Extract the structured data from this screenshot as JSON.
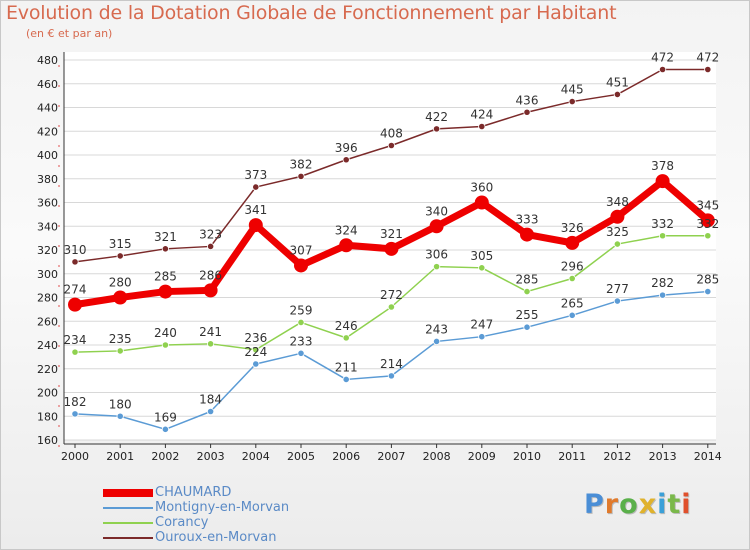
{
  "title": "Evolution de la Dotation Globale de Fonctionnement par Habitant",
  "subtitle": "(en € et par an)",
  "logo": {
    "text": "Proxiti",
    "letter_colors": [
      "#4a8ed6",
      "#e07a2c",
      "#5ab04a",
      "#e0b22c",
      "#3aa0d8",
      "#7ab84a",
      "#e0502c"
    ]
  },
  "chart_data": {
    "type": "line",
    "x": [
      "2000",
      "2001",
      "2002",
      "2003",
      "2004",
      "2005",
      "2006",
      "2007",
      "2008",
      "2009",
      "2010",
      "2011",
      "2012",
      "2013",
      "2014"
    ],
    "ylim": [
      160,
      480
    ],
    "yticks": [
      160,
      180,
      200,
      220,
      240,
      260,
      280,
      300,
      320,
      340,
      360,
      380,
      400,
      420,
      440,
      460,
      480
    ],
    "grid": true,
    "legend_position": "bottom-left",
    "series": [
      {
        "name": "CHAUMARD",
        "color": "#ee0000",
        "highlight": true,
        "values": [
          274,
          280,
          285,
          286,
          341,
          307,
          324,
          321,
          340,
          360,
          333,
          326,
          348,
          378,
          345
        ]
      },
      {
        "name": "Montigny-en-Morvan",
        "color": "#5b9bd5",
        "highlight": false,
        "values": [
          182,
          180,
          169,
          184,
          224,
          233,
          211,
          214,
          243,
          247,
          255,
          265,
          277,
          282,
          285
        ]
      },
      {
        "name": "Corancy",
        "color": "#8fd14f",
        "highlight": false,
        "values": [
          234,
          235,
          240,
          241,
          236,
          259,
          246,
          272,
          306,
          305,
          285,
          296,
          325,
          332,
          332
        ]
      },
      {
        "name": "Ouroux-en-Morvan",
        "color": "#7b2a2a",
        "highlight": false,
        "values": [
          310,
          315,
          321,
          323,
          373,
          382,
          396,
          408,
          422,
          424,
          436,
          445,
          451,
          472,
          472
        ]
      }
    ]
  }
}
